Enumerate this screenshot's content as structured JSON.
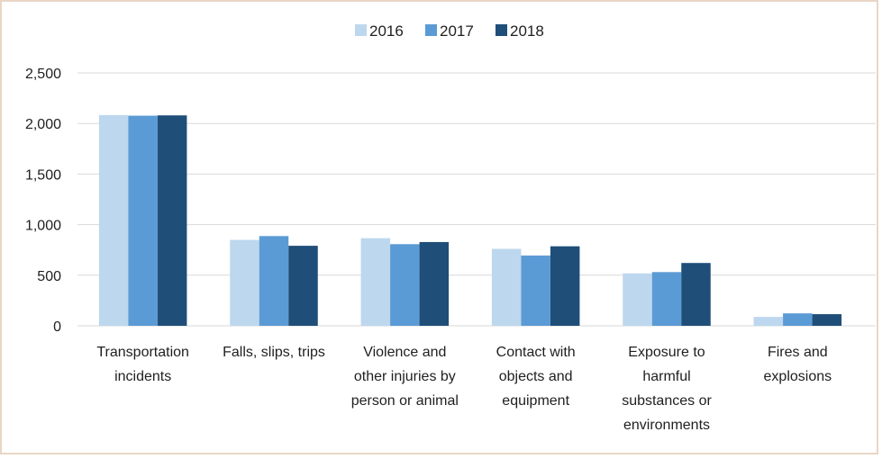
{
  "chart_data": {
    "type": "bar",
    "categories": [
      [
        "Transportation",
        "incidents"
      ],
      [
        "Falls, slips, trips"
      ],
      [
        "Violence and",
        "other injuries by",
        "person or animal"
      ],
      [
        "Contact with",
        "objects and",
        "equipment"
      ],
      [
        "Exposure to",
        "harmful",
        "substances or",
        "environments"
      ],
      [
        "Fires and",
        "explosions"
      ]
    ],
    "series": [
      {
        "name": "2016",
        "color": "#bdd7ee",
        "values": [
          2083,
          849,
          866,
          761,
          518,
          88
        ]
      },
      {
        "name": "2017",
        "color": "#5b9bd5",
        "values": [
          2077,
          887,
          807,
          695,
          531,
          123
        ]
      },
      {
        "name": "2018",
        "color": "#1f4e79",
        "values": [
          2080,
          791,
          828,
          786,
          621,
          115
        ]
      }
    ],
    "yticks": [
      "0",
      "500",
      "1,000",
      "1,500",
      "2,000",
      "2,500"
    ],
    "ytick_values": [
      0,
      500,
      1000,
      1500,
      2000,
      2500
    ],
    "ylim": [
      0,
      2500
    ],
    "grid": true,
    "legend_position": "top-center",
    "gridline_color": "#d9d9d9"
  }
}
